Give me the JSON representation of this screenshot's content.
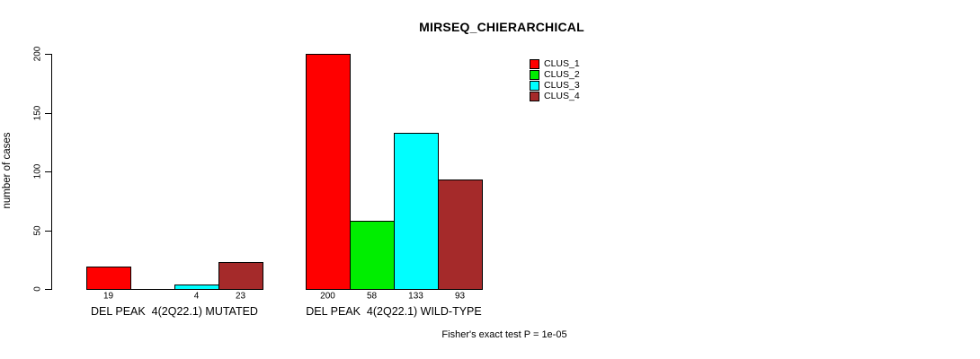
{
  "chart_data": {
    "type": "bar",
    "title": "MIRSEQ_CHIERARCHICAL",
    "ylabel": "number of cases",
    "xlabel": "",
    "ylim": [
      0,
      200
    ],
    "yticks": [
      0,
      50,
      100,
      150,
      200
    ],
    "ytick_labels": [
      "0",
      "50",
      "100",
      "150",
      "200"
    ],
    "grid": false,
    "bar_border_color": "#000000",
    "series": [
      {
        "name": "CLUS_1",
        "color": "#FF0000"
      },
      {
        "name": "CLUS_2",
        "color": "#00EE00"
      },
      {
        "name": "CLUS_3",
        "color": "#00FFFF"
      },
      {
        "name": "CLUS_4",
        "color": "#A52A2A"
      }
    ],
    "groups": [
      {
        "label": "DEL PEAK  4(2Q22.1) MUTATED",
        "values": [
          19,
          0,
          4,
          23
        ],
        "value_labels": [
          "19",
          "",
          "4",
          "23"
        ]
      },
      {
        "label": "DEL PEAK  4(2Q22.1) WILD-TYPE",
        "values": [
          200,
          58,
          133,
          93
        ],
        "value_labels": [
          "200",
          "58",
          "133",
          "93"
        ]
      }
    ],
    "legend": {
      "position": "top-right",
      "entries": [
        "CLUS_1",
        "CLUS_2",
        "CLUS_3",
        "CLUS_4"
      ]
    },
    "footnote": "Fisher's exact test P = 1e-05"
  }
}
